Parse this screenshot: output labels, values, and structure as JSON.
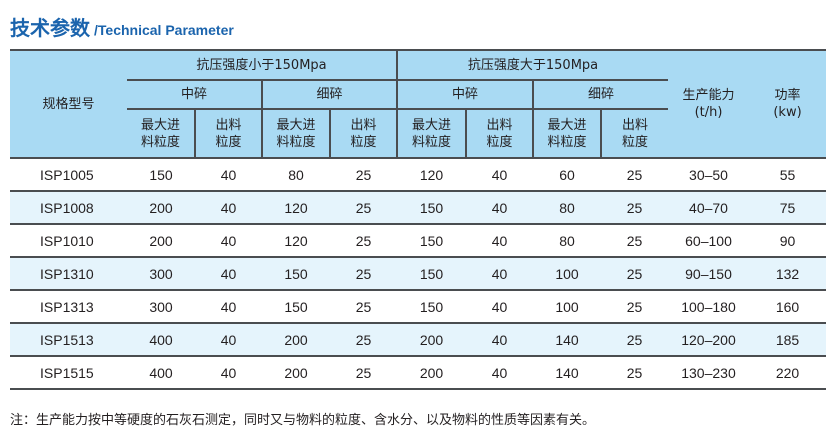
{
  "title": {
    "zh": "技术参数",
    "en": "/Technical Parameter"
  },
  "header": {
    "model": "规格型号",
    "group_low": "抗压强度小于150Mpa",
    "group_high": "抗压强度大于150Mpa",
    "medium": "中碎",
    "fine": "细碎",
    "max_feed": "最大进料粒度",
    "output_size": "出料粒度",
    "capacity": "生产能力",
    "capacity_unit": "(t/h)",
    "power": "功率",
    "power_unit": "(kw)"
  },
  "rows": [
    [
      "ISP1005",
      "150",
      "40",
      "80",
      "25",
      "120",
      "40",
      "60",
      "25",
      "30–50",
      "55"
    ],
    [
      "ISP1008",
      "200",
      "40",
      "120",
      "25",
      "150",
      "40",
      "80",
      "25",
      "40–70",
      "75"
    ],
    [
      "ISP1010",
      "200",
      "40",
      "120",
      "25",
      "150",
      "40",
      "80",
      "25",
      "60–100",
      "90"
    ],
    [
      "ISP1310",
      "300",
      "40",
      "150",
      "25",
      "150",
      "40",
      "100",
      "25",
      "90–150",
      "132"
    ],
    [
      "ISP1313",
      "300",
      "40",
      "150",
      "25",
      "150",
      "40",
      "100",
      "25",
      "100–180",
      "160"
    ],
    [
      "ISP1513",
      "400",
      "40",
      "200",
      "25",
      "200",
      "40",
      "140",
      "25",
      "120–200",
      "185"
    ],
    [
      "ISP1515",
      "400",
      "40",
      "200",
      "25",
      "200",
      "40",
      "140",
      "25",
      "130–230",
      "220"
    ]
  ],
  "note": "注：生产能力按中等硬度的石灰石测定，同时又与物料的粒度、含水分、以及物料的性质等因素有关。",
  "colors": {
    "title": "#1b64ad",
    "header_bg": "#a9daf3",
    "stripe_bg": "#e5f4fc"
  }
}
